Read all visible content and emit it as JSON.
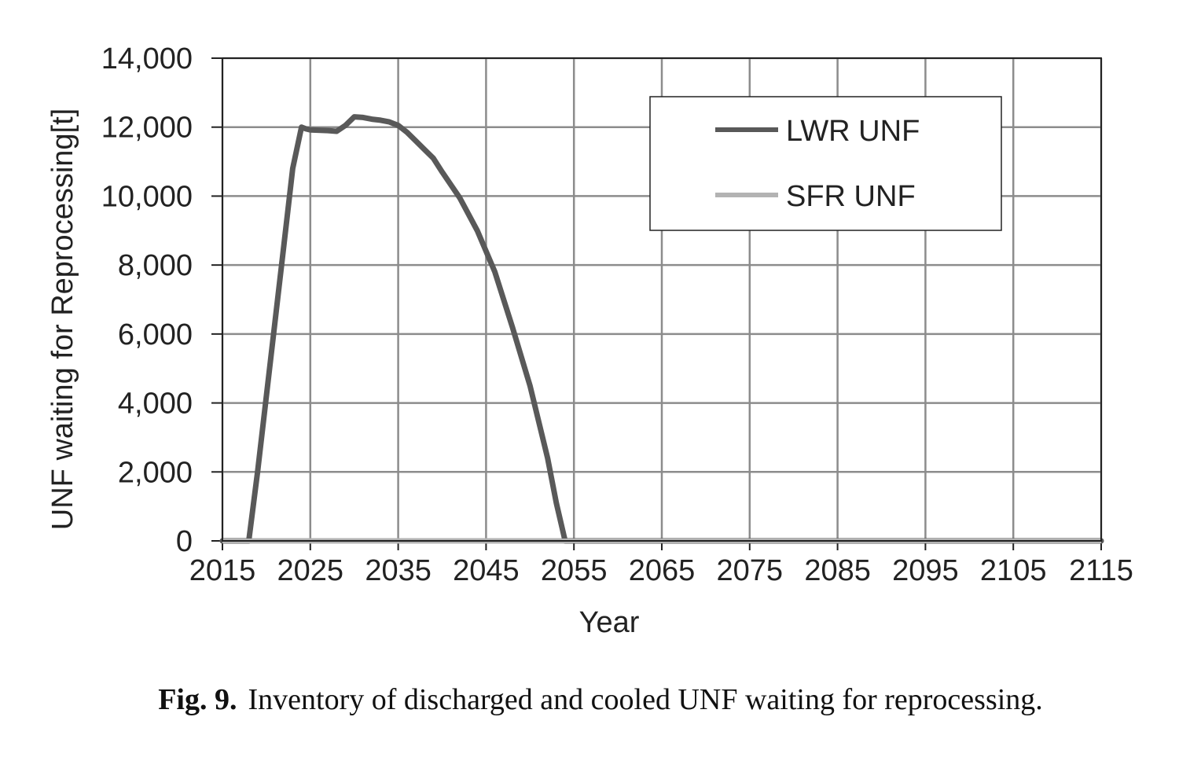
{
  "chart_data": {
    "type": "line",
    "title": "",
    "xlabel": "Year",
    "ylabel": "UNF waiting for Reprocessing[t]",
    "xlim": [
      2015,
      2115
    ],
    "ylim": [
      0,
      14000
    ],
    "x_ticks": [
      "2015",
      "2025",
      "2035",
      "2045",
      "2055",
      "2065",
      "2075",
      "2085",
      "2095",
      "2105",
      "2115"
    ],
    "y_ticks": [
      "0",
      "2,000",
      "4,000",
      "6,000",
      "8,000",
      "10,000",
      "12,000",
      "14,000"
    ],
    "grid": true,
    "legend_position": "top-right",
    "series": [
      {
        "name": "LWR UNF",
        "color": "#595959",
        "x": [
          2015,
          2018,
          2019,
          2020,
          2021,
          2022,
          2023,
          2024,
          2024.5,
          2025,
          2027,
          2028,
          2029,
          2030,
          2031,
          2032,
          2033,
          2034,
          2035,
          2036,
          2037,
          2038,
          2039,
          2040,
          2042,
          2044,
          2046,
          2048,
          2050,
          2052,
          2053,
          2054,
          2055,
          2115
        ],
        "y": [
          0,
          0,
          2000,
          4200,
          6400,
          8600,
          10800,
          12000,
          11950,
          11920,
          11900,
          11880,
          12050,
          12300,
          12280,
          12230,
          12200,
          12150,
          12050,
          11850,
          11600,
          11350,
          11100,
          10700,
          9950,
          9000,
          7800,
          6200,
          4500,
          2400,
          1100,
          0,
          0,
          0
        ]
      },
      {
        "name": "SFR UNF",
        "color": "#b3b3b3",
        "x": [
          2015,
          2115
        ],
        "y": [
          0,
          0
        ]
      }
    ]
  },
  "caption": {
    "label": "Fig. 9.",
    "text": "Inventory of discharged and cooled UNF waiting for reprocessing."
  }
}
